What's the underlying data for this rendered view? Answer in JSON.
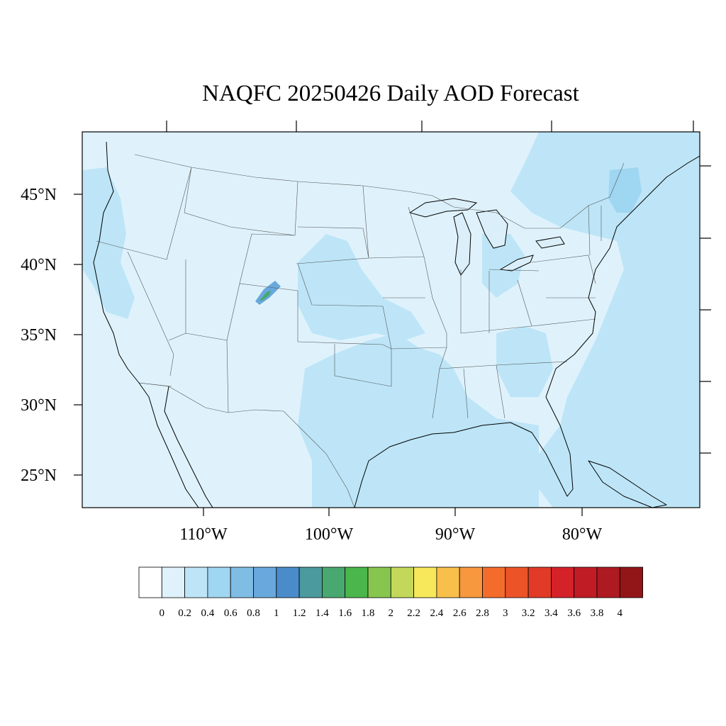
{
  "title": "NAQFC 20250426 Daily AOD Forecast",
  "lat_labels": [
    "45°N",
    "40°N",
    "35°N",
    "30°N",
    "25°N"
  ],
  "lon_labels": [
    "110°W",
    "100°W",
    "90°W",
    "80°W"
  ],
  "colorbar": {
    "labels": [
      "0",
      "0.2",
      "0.4",
      "0.6",
      "0.8",
      "1",
      "1.2",
      "1.4",
      "1.6",
      "1.8",
      "2",
      "2.2",
      "2.4",
      "2.6",
      "2.8",
      "3",
      "3.2",
      "3.4",
      "3.6",
      "3.8",
      "4"
    ],
    "colors": [
      "#ffffff",
      "#dff2fc",
      "#bde5f7",
      "#9fd6f2",
      "#80bde5",
      "#68a8dd",
      "#4a8cc9",
      "#4a9a9e",
      "#48a86f",
      "#4ab64b",
      "#86c64e",
      "#c3d85a",
      "#f7e75a",
      "#f8bf4a",
      "#f7983e",
      "#f46c2c",
      "#ec5427",
      "#e13a26",
      "#d42228",
      "#c01c26",
      "#ae1a22",
      "#921518"
    ]
  },
  "map_colors": {
    "background": "#dff2fc",
    "level_0_4": "#bde5f7",
    "level_0_6": "#9fd6f2",
    "level_1": "#68a8dd",
    "level_1_6": "#48a86f"
  }
}
